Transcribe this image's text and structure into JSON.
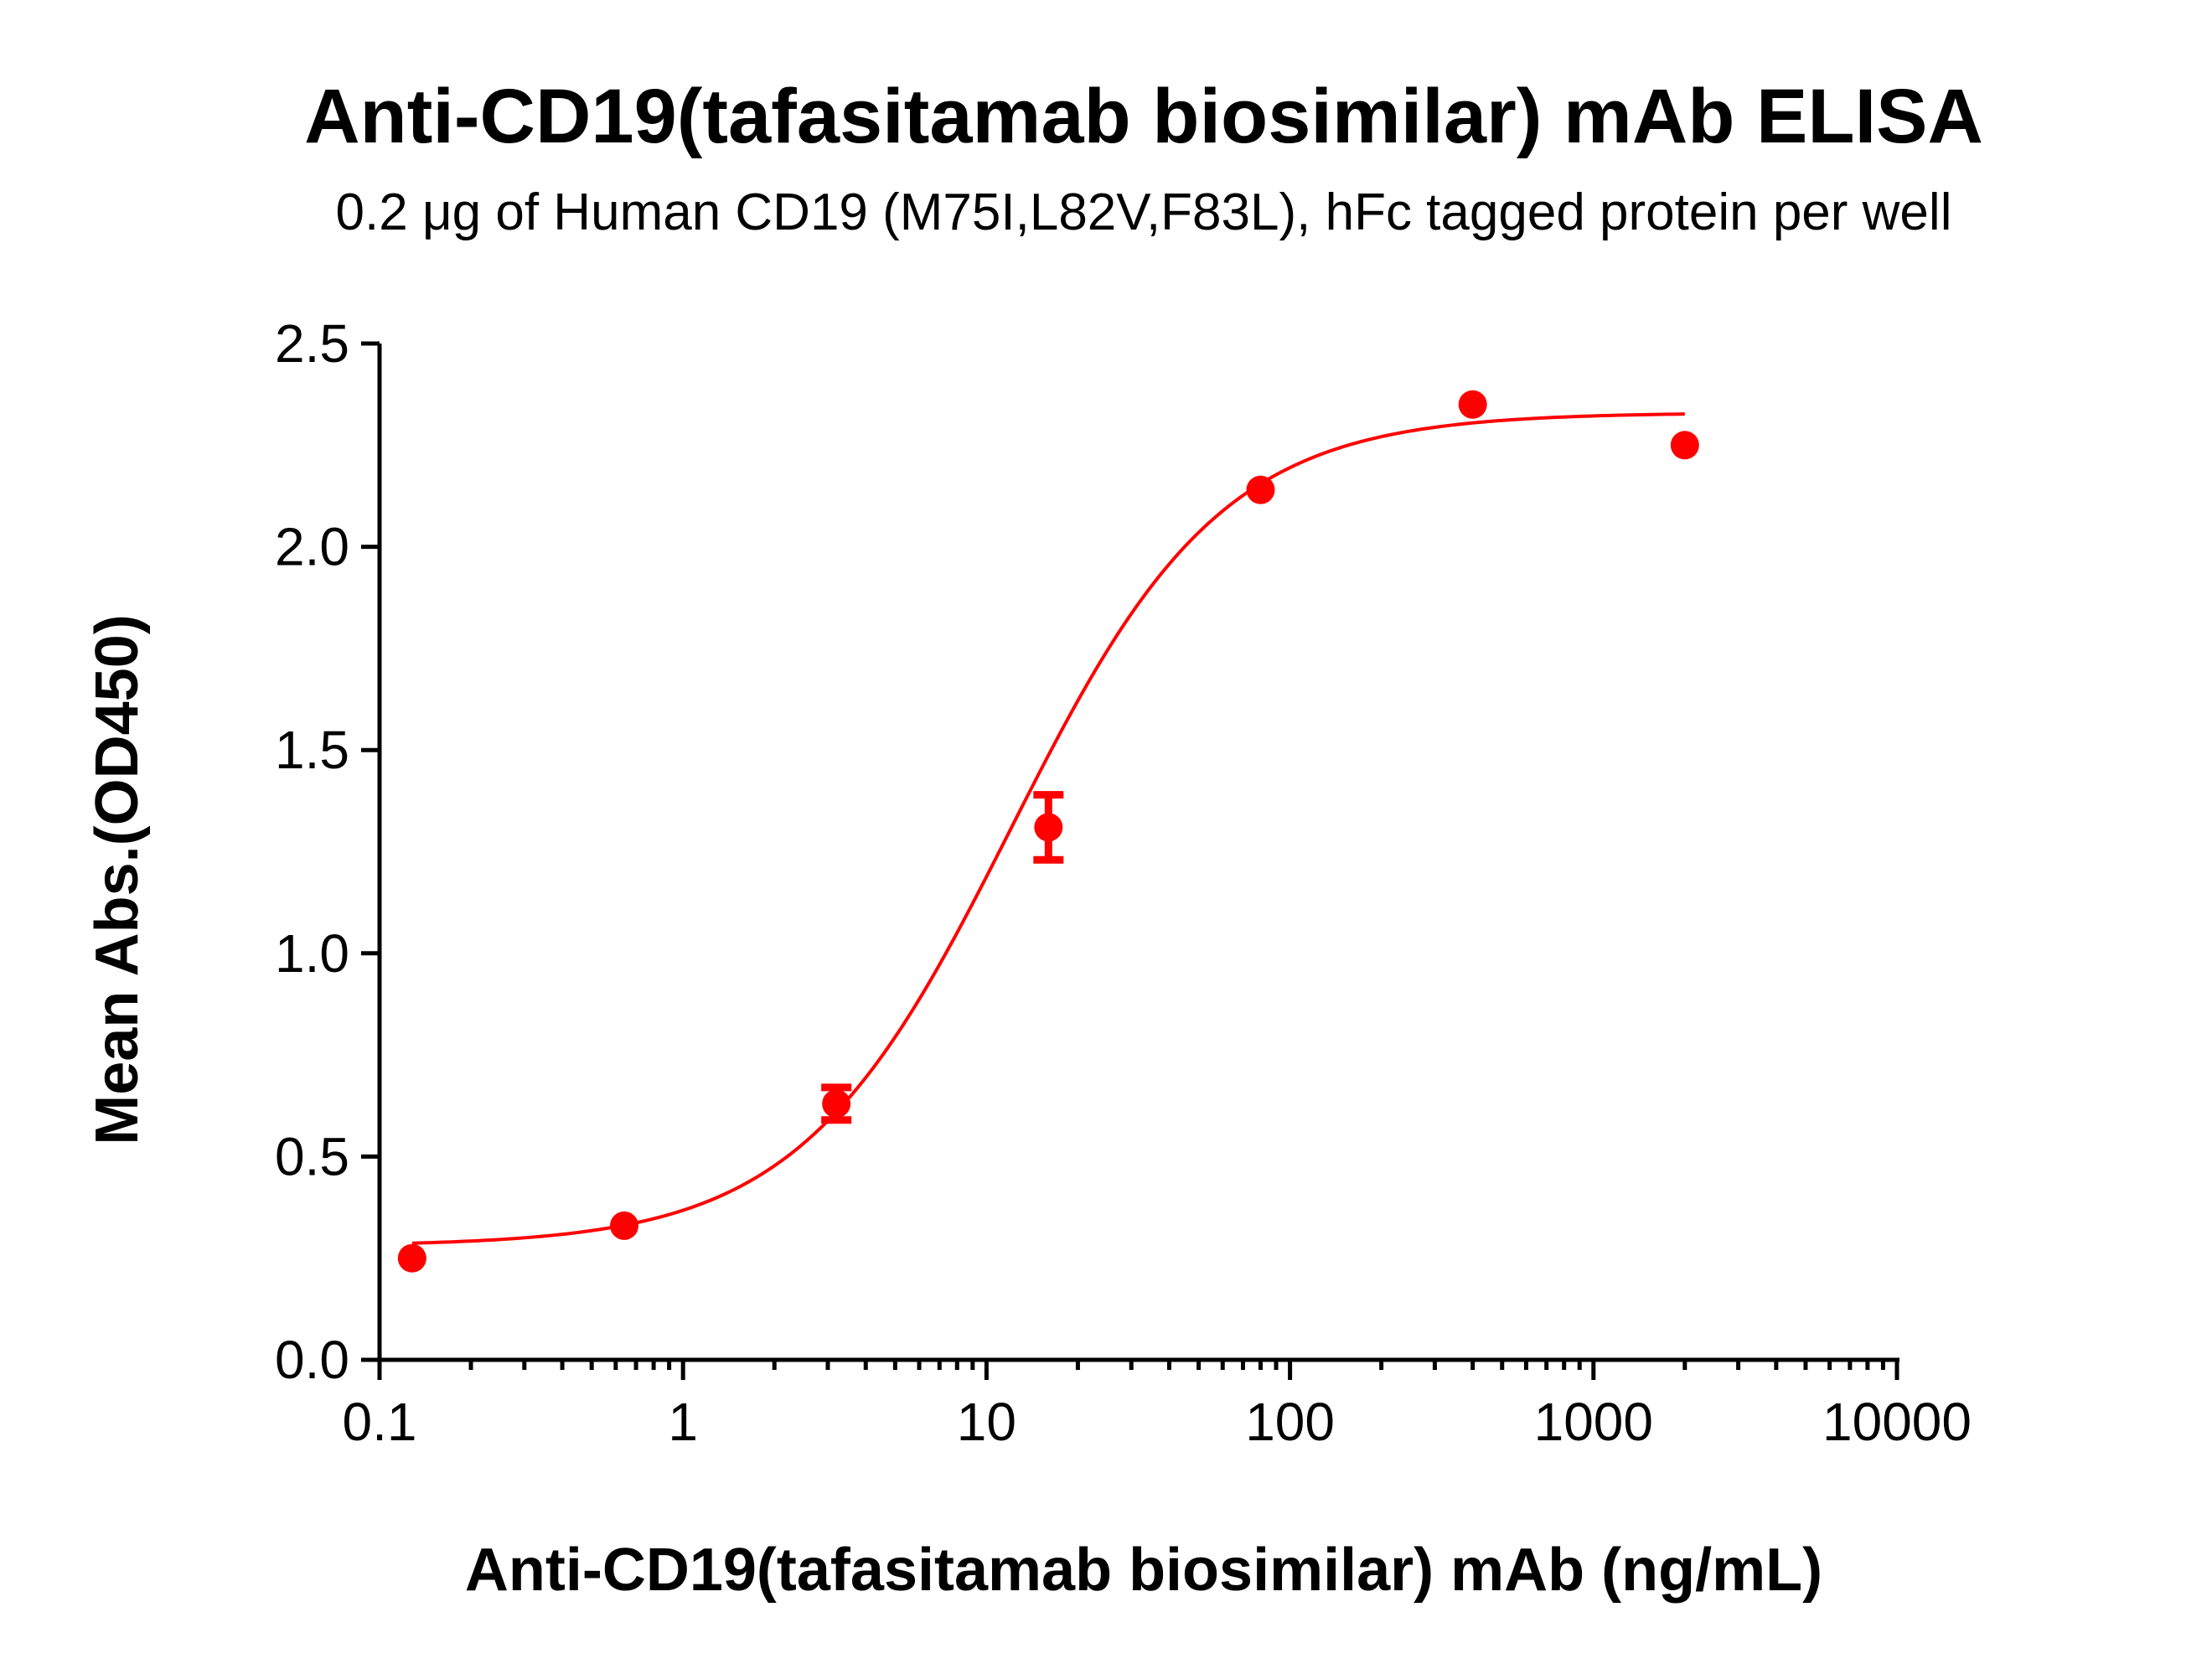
{
  "chart_data": {
    "type": "scatter",
    "title": "Anti-CD19(tafasitamab biosimilar) mAb ELISA",
    "subtitle": "0.2 μg of Human CD19 (M75I,L82V,F83L), hFc tagged protein per well",
    "xlabel": "Anti-CD19(tafasitamab biosimilar) mAb (ng/mL)",
    "ylabel": "Mean Abs.(OD450)",
    "x_scale": "log",
    "xlim": [
      0.1,
      10000
    ],
    "ylim": [
      0.0,
      2.5
    ],
    "x_ticks": [
      0.1,
      1,
      10,
      100,
      1000,
      10000
    ],
    "x_tick_labels": [
      "0.1",
      "1",
      "10",
      "100",
      "1000",
      "10000"
    ],
    "y_ticks": [
      0.0,
      0.5,
      1.0,
      1.5,
      2.0,
      2.5
    ],
    "y_tick_labels": [
      "0.0",
      "0.5",
      "1.0",
      "1.5",
      "2.0",
      "2.5"
    ],
    "grid": false,
    "legend": "none",
    "series": [
      {
        "color": "#ff0000",
        "x": [
          0.128,
          0.64,
          3.2,
          16,
          80,
          400,
          2000
        ],
        "y": [
          0.25,
          0.33,
          0.63,
          1.31,
          2.14,
          2.35,
          2.25
        ],
        "error": [
          0,
          0,
          0.04,
          0.08,
          0,
          0,
          0
        ],
        "fit": {
          "model": "four-parameter logistic",
          "bottom": 0.28,
          "top": 2.33,
          "ec50": 12,
          "hill": 1.25
        }
      }
    ]
  }
}
